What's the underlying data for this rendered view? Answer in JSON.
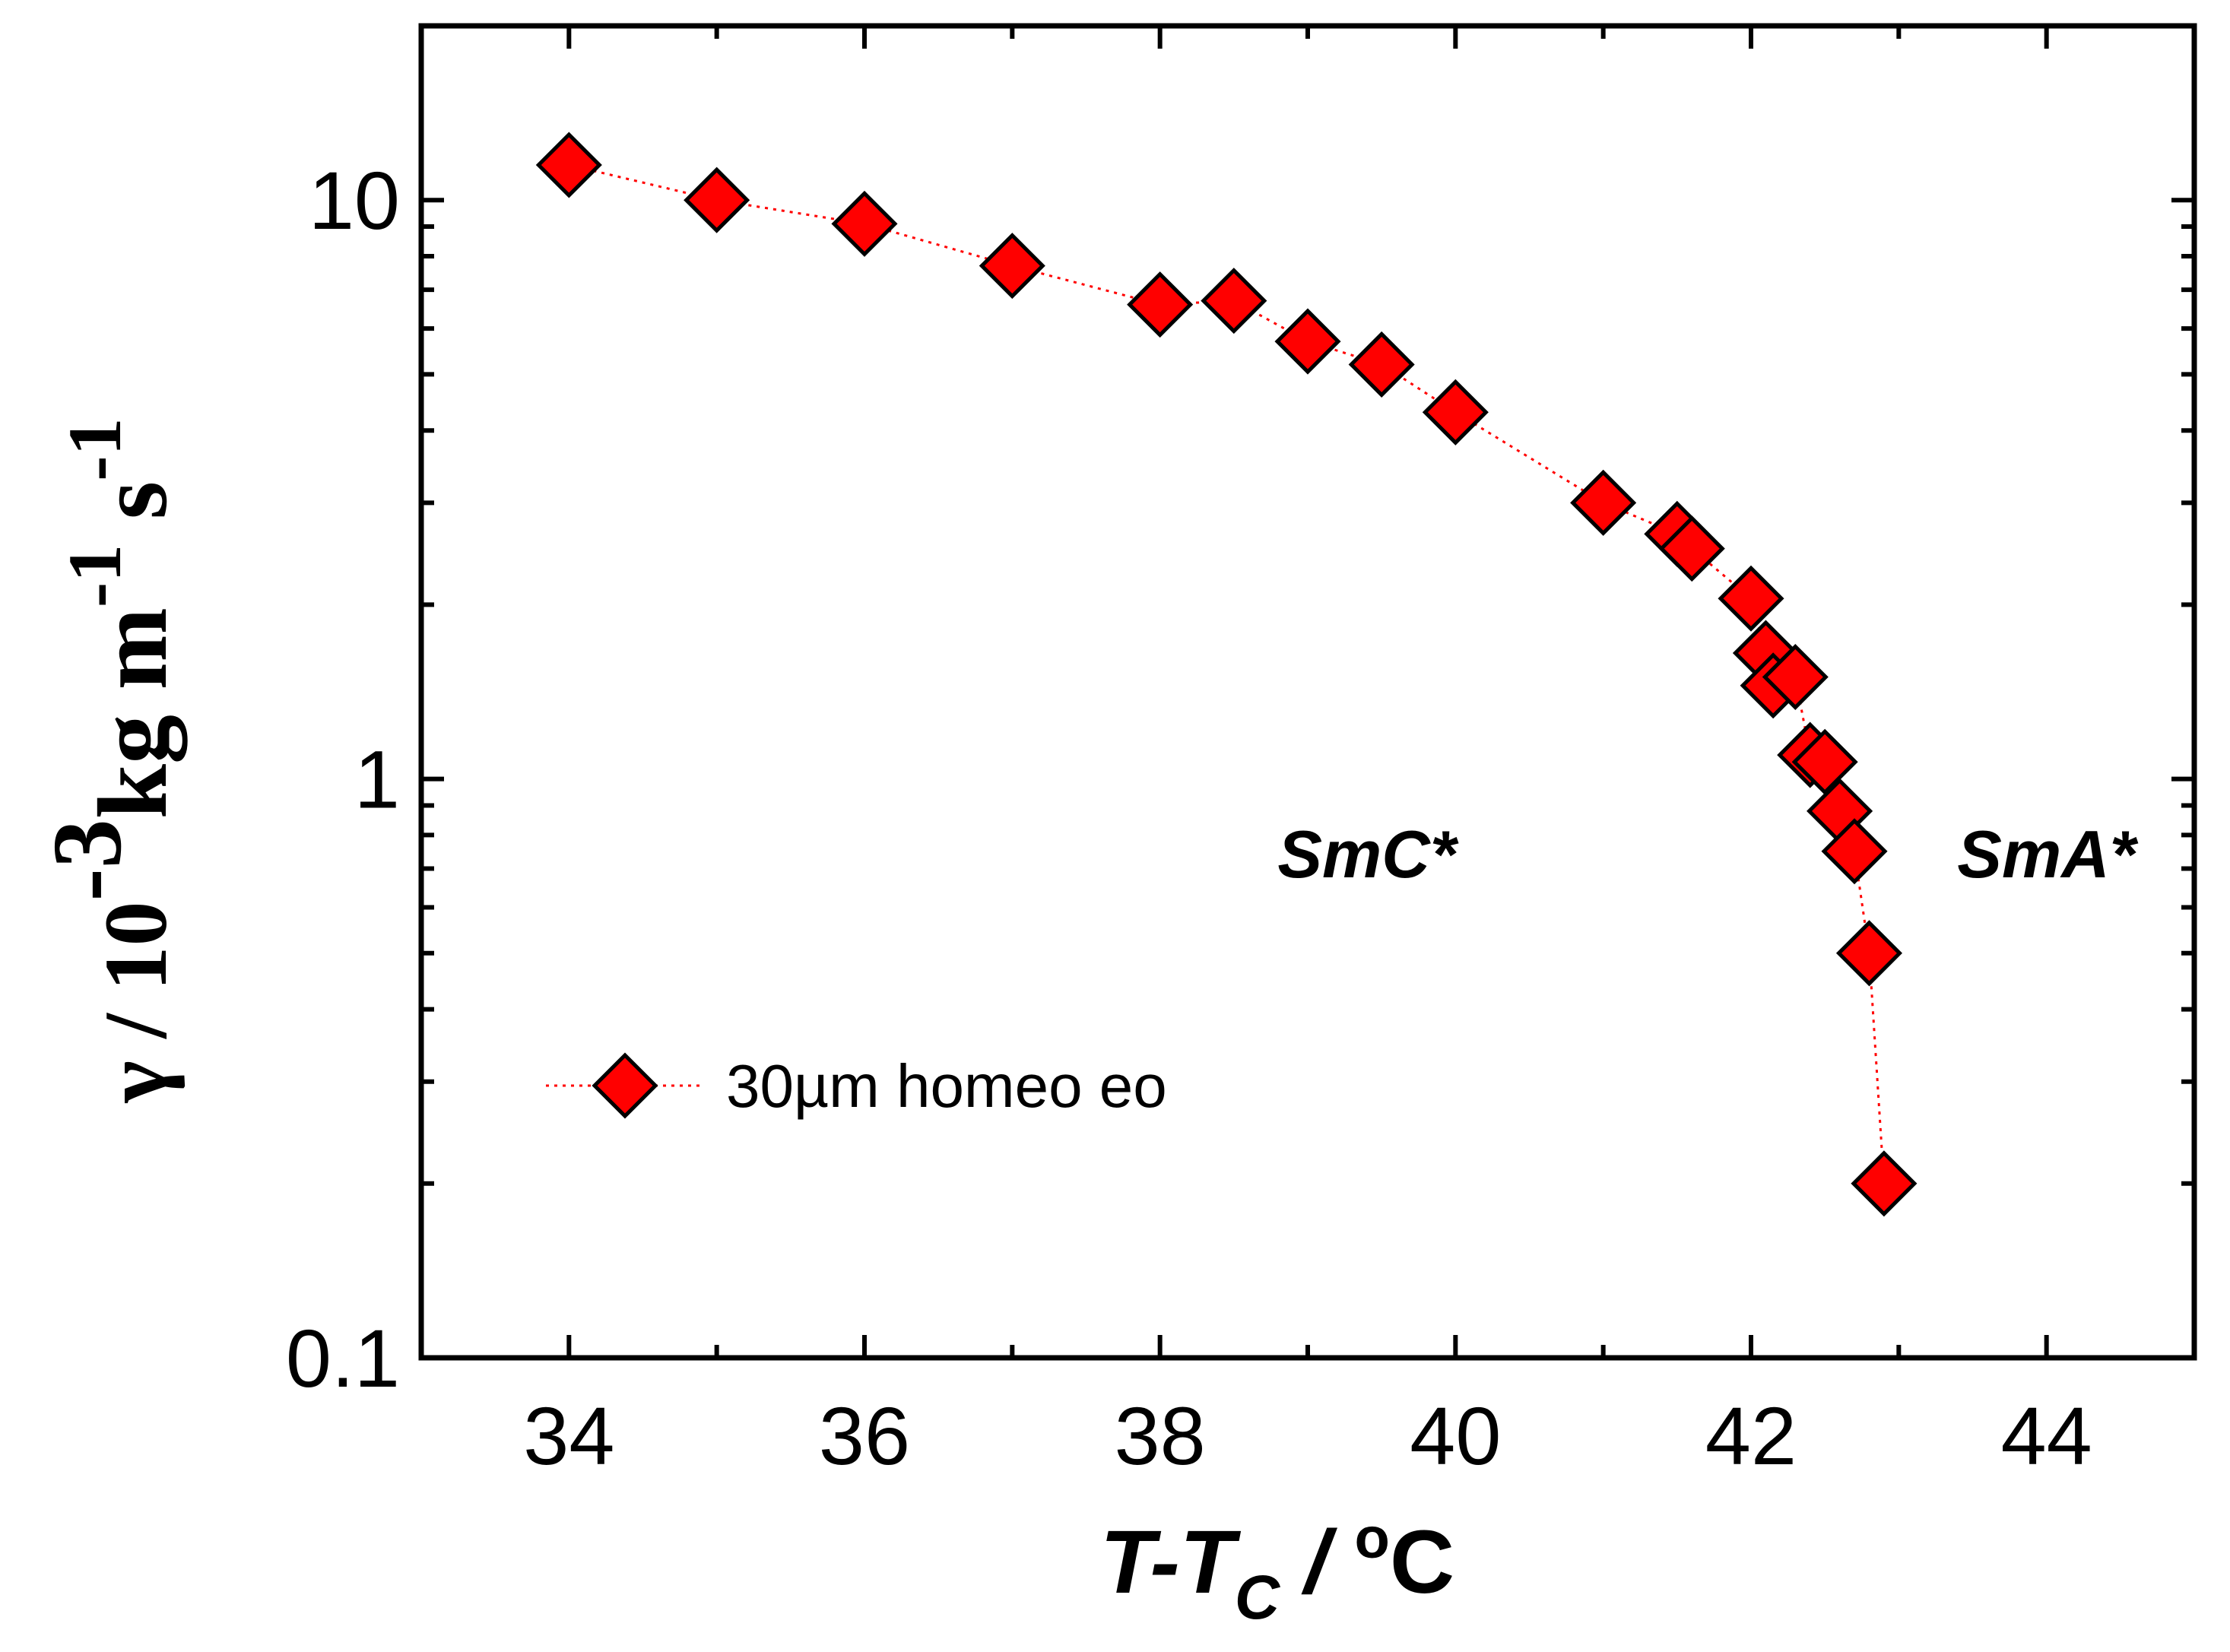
{
  "chart_data": {
    "type": "scatter",
    "title": "",
    "xlabel": {
      "main": "T-T",
      "sub": "C",
      "sep": " / ",
      "deg": "o",
      "unit": "C"
    },
    "ylabel": {
      "gamma": "γ",
      "slash": " / ",
      "base": "10",
      "exp": "-3",
      "kg": "kg m",
      "exp2": "-1",
      "s": " s",
      "exp3": "-1"
    },
    "xlim": [
      33,
      45
    ],
    "ylim": [
      0.1,
      20
    ],
    "yscale": "log",
    "xticks": [
      34,
      36,
      38,
      40,
      42,
      44
    ],
    "xtick_labels": [
      "34",
      "36",
      "38",
      "40",
      "42",
      "44"
    ],
    "yticks": [
      0.1,
      1,
      10
    ],
    "ytick_labels": [
      "0.1",
      "1",
      "10"
    ],
    "grid": false,
    "legend_position": "bottom-left",
    "series": [
      {
        "name": "30µm homeo eo",
        "marker": "diamond",
        "color": "#ff0000",
        "line_style": "dotted",
        "points": [
          [
            34.0,
            11.5
          ],
          [
            35.0,
            10.0
          ],
          [
            36.0,
            9.1
          ],
          [
            37.0,
            7.7
          ],
          [
            38.0,
            6.6
          ],
          [
            38.5,
            6.7
          ],
          [
            39.0,
            5.7
          ],
          [
            39.5,
            5.2
          ],
          [
            40.0,
            4.3
          ],
          [
            41.0,
            3.0
          ],
          [
            41.5,
            2.65
          ],
          [
            41.6,
            2.5
          ],
          [
            42.0,
            2.05
          ],
          [
            42.1,
            1.65
          ],
          [
            42.15,
            1.45
          ],
          [
            42.3,
            1.5
          ],
          [
            42.4,
            1.1
          ],
          [
            42.5,
            1.07
          ],
          [
            42.6,
            0.88
          ],
          [
            42.7,
            0.75
          ],
          [
            42.8,
            0.5
          ],
          [
            42.9,
            0.2
          ]
        ]
      }
    ],
    "annotations": [
      {
        "text": "SmC*",
        "x": 39.4,
        "y": 0.74
      },
      {
        "text": "SmA*",
        "x": 44.0,
        "y": 0.74
      }
    ]
  }
}
